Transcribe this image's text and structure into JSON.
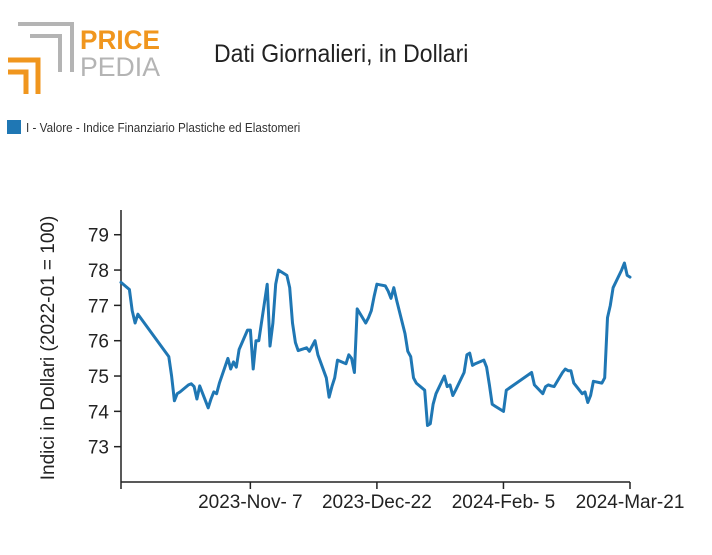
{
  "header": {
    "logo_top": "PRICE",
    "logo_bottom": "PEDIA",
    "title": "Dati Giornalieri, in Dollari"
  },
  "colors": {
    "line": "#1f77b4",
    "logo_orange": "#f0961e",
    "logo_gray": "#b4b4b4",
    "axis": "#222222"
  },
  "legend": {
    "label": "I - Valore - Indice Finanziario Plastiche ed Elastomeri"
  },
  "chart_data": {
    "type": "line",
    "title": "Dati Giornalieri, in Dollari",
    "xlabel": "",
    "ylabel": "Indici in Dollari (2022-01 = 100)",
    "ylim": [
      72,
      79.7
    ],
    "yticks": [
      73,
      74,
      75,
      76,
      77,
      78,
      79
    ],
    "xlim": [
      "2023-09-22",
      "2024-03-21"
    ],
    "xticks": [
      "2023-09-22",
      "2023-11-07",
      "2023-12-22",
      "2024-02-05",
      "2024-03-21"
    ],
    "xtick_labels": [
      "",
      "2023-Nov- 7",
      "2023-Dec-22",
      "2024-Feb- 5",
      "2024-Mar-21"
    ],
    "legend_position": "top-left",
    "grid": false,
    "series": [
      {
        "name": "I - Valore - Indice Finanziario Plastiche ed Elastomeri",
        "x": [
          "2023-09-22",
          "2023-09-25",
          "2023-09-26",
          "2023-09-27",
          "2023-09-28",
          "2023-10-09",
          "2023-10-10",
          "2023-10-11",
          "2023-10-12",
          "2023-10-13",
          "2023-10-16",
          "2023-10-17",
          "2023-10-18",
          "2023-10-19",
          "2023-10-20",
          "2023-10-23",
          "2023-10-24",
          "2023-10-25",
          "2023-10-26",
          "2023-10-27",
          "2023-10-30",
          "2023-10-31",
          "2023-11-01",
          "2023-11-02",
          "2023-11-03",
          "2023-11-06",
          "2023-11-07",
          "2023-11-08",
          "2023-11-09",
          "2023-11-10",
          "2023-11-13",
          "2023-11-14",
          "2023-11-15",
          "2023-11-16",
          "2023-11-17",
          "2023-11-20",
          "2023-11-21",
          "2023-11-22",
          "2023-11-23",
          "2023-11-24",
          "2023-11-27",
          "2023-11-28",
          "2023-11-29",
          "2023-11-30",
          "2023-12-01",
          "2023-12-04",
          "2023-12-05",
          "2023-12-06",
          "2023-12-07",
          "2023-12-08",
          "2023-12-11",
          "2023-12-12",
          "2023-12-13",
          "2023-12-14",
          "2023-12-15",
          "2023-12-18",
          "2023-12-19",
          "2023-12-20",
          "2023-12-21",
          "2023-12-22",
          "2023-12-25",
          "2023-12-26",
          "2023-12-27",
          "2023-12-28",
          "2023-12-29",
          "2024-01-01",
          "2024-01-02",
          "2024-01-03",
          "2024-01-04",
          "2024-01-05",
          "2024-01-08",
          "2024-01-09",
          "2024-01-10",
          "2024-01-11",
          "2024-01-12",
          "2024-01-15",
          "2024-01-16",
          "2024-01-17",
          "2024-01-18",
          "2024-01-19",
          "2024-01-22",
          "2024-01-23",
          "2024-01-24",
          "2024-01-25",
          "2024-01-26",
          "2024-01-29",
          "2024-01-30",
          "2024-01-31",
          "2024-02-01",
          "2024-02-02",
          "2024-02-05",
          "2024-02-06",
          "2024-02-15",
          "2024-02-16",
          "2024-02-19",
          "2024-02-20",
          "2024-02-21",
          "2024-02-22",
          "2024-02-23",
          "2024-02-26",
          "2024-02-27",
          "2024-02-28",
          "2024-02-29",
          "2024-03-01",
          "2024-03-04",
          "2024-03-05",
          "2024-03-06",
          "2024-03-07",
          "2024-03-08",
          "2024-03-11",
          "2024-03-12",
          "2024-03-13",
          "2024-03-14",
          "2024-03-15",
          "2024-03-18",
          "2024-03-19",
          "2024-03-20",
          "2024-03-21"
        ],
        "values": [
          77.65,
          77.45,
          76.85,
          76.5,
          76.75,
          75.55,
          75.0,
          74.3,
          74.5,
          74.55,
          74.75,
          74.78,
          74.7,
          74.35,
          74.72,
          74.1,
          74.35,
          74.55,
          74.5,
          74.8,
          75.5,
          75.2,
          75.4,
          75.25,
          75.75,
          76.3,
          76.3,
          75.2,
          76.0,
          76.0,
          77.6,
          75.85,
          76.5,
          77.6,
          78.0,
          77.85,
          77.5,
          76.5,
          75.95,
          75.72,
          75.8,
          75.7,
          75.85,
          76.0,
          75.6,
          74.95,
          74.4,
          74.7,
          74.95,
          75.45,
          75.35,
          75.6,
          75.5,
          75.1,
          76.9,
          76.5,
          76.65,
          76.85,
          77.25,
          77.6,
          77.55,
          77.4,
          77.2,
          77.5,
          77.15,
          76.2,
          75.7,
          75.55,
          74.95,
          74.8,
          74.6,
          73.6,
          73.65,
          74.2,
          74.5,
          75.0,
          74.7,
          74.75,
          74.45,
          74.6,
          75.1,
          75.6,
          75.65,
          75.3,
          75.35,
          75.45,
          75.25,
          74.75,
          74.2,
          74.15,
          74.0,
          74.6,
          75.1,
          74.75,
          74.5,
          74.7,
          74.75,
          74.72,
          74.7,
          75.1,
          75.2,
          75.15,
          75.15,
          74.8,
          74.5,
          74.55,
          74.25,
          74.45,
          74.85,
          74.8,
          74.95,
          76.65,
          77.0,
          77.5,
          78.0,
          78.2,
          77.85,
          77.8
        ]
      }
    ]
  }
}
